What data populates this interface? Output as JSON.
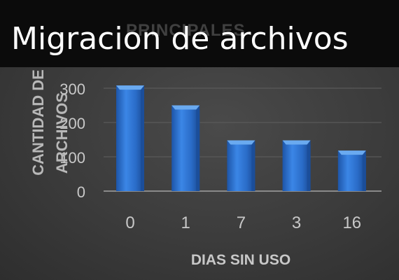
{
  "slide": {
    "title": "Migracion de archivos"
  },
  "chart_data": {
    "type": "bar",
    "title": "PRINCIPALES",
    "categories": [
      "0",
      "1",
      "7",
      "3",
      "16"
    ],
    "values": [
      308,
      250,
      148,
      148,
      118
    ],
    "xlabel": "DIAS SIN USO",
    "ylabel": "CANTIDAD DE ARCHIVOS",
    "yticks": [
      "0",
      "100",
      "200",
      "300"
    ],
    "ylim": [
      0,
      330
    ],
    "grid": true,
    "legend": "none",
    "colors": {
      "bar_top": "#6aaaf0",
      "bar_mid": "#2f78d8",
      "bar_bottom": "#1b4e9a",
      "axis_text": "#c8c8c8",
      "grid": "#5a5a5a"
    }
  }
}
